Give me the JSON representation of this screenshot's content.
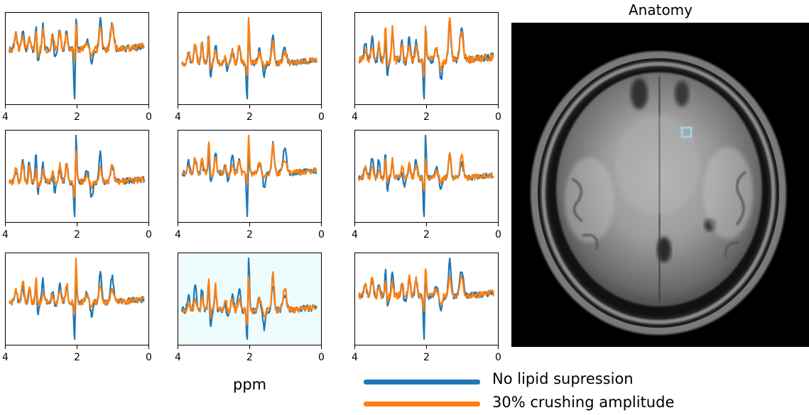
{
  "colors": {
    "series_1": "#1f77b4",
    "series_2": "#ff7f0e",
    "highlight_bg": "#eefcfd",
    "roi": "#9bd3ee"
  },
  "chart_data": {
    "type": "line",
    "grid": "3x3",
    "xlabel": "ppm",
    "xlim": [
      4,
      0
    ],
    "x_axis_direction": "descending",
    "xticks": [
      "4",
      "2",
      "0"
    ],
    "grid_lines": false,
    "highlighted_panel": 7,
    "series": [
      {
        "name": "No lipid supression",
        "color": "#1f77b4"
      },
      {
        "name": "30% crushing amplitude",
        "color": "#ff7f0e"
      }
    ],
    "legend_position": "bottom-right"
  },
  "anatomy": {
    "title": "Anatomy",
    "image": "axial brain MRI",
    "roi_marker": "light-blue square"
  }
}
